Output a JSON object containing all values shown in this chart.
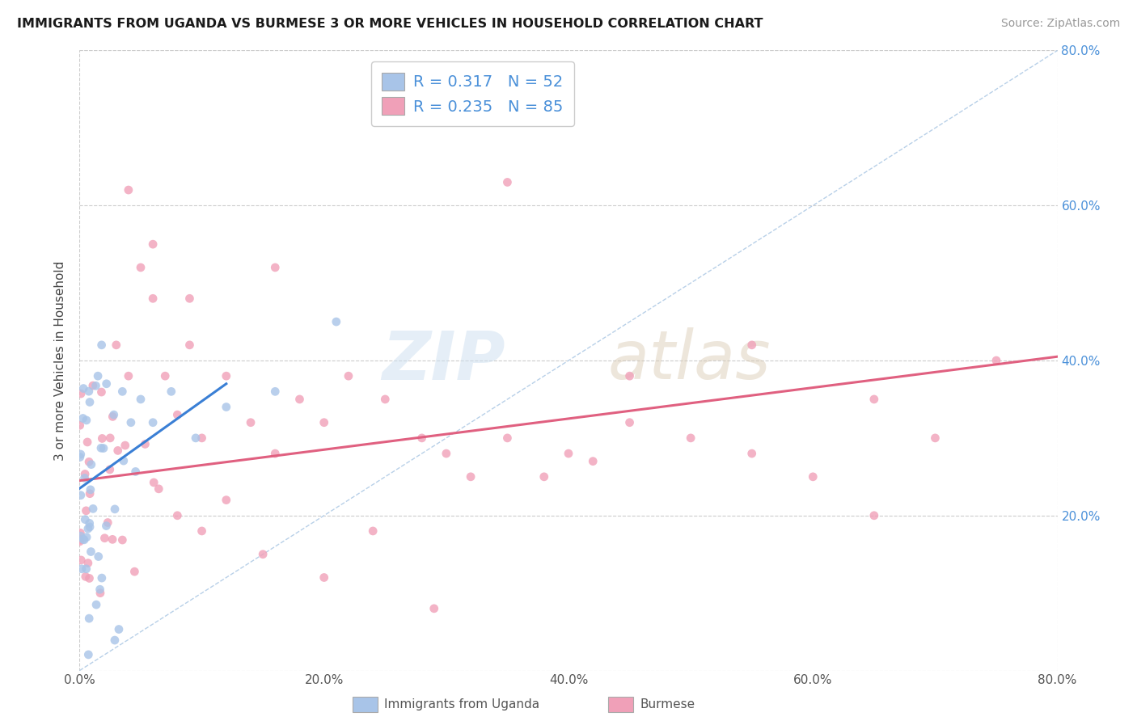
{
  "title": "IMMIGRANTS FROM UGANDA VS BURMESE 3 OR MORE VEHICLES IN HOUSEHOLD CORRELATION CHART",
  "source": "Source: ZipAtlas.com",
  "ylabel": "3 or more Vehicles in Household",
  "xlim": [
    0.0,
    0.8
  ],
  "ylim": [
    0.0,
    0.8
  ],
  "xtick_labels": [
    "0.0%",
    "20.0%",
    "40.0%",
    "60.0%",
    "80.0%"
  ],
  "xtick_vals": [
    0.0,
    0.2,
    0.4,
    0.6,
    0.8
  ],
  "ytick_vals": [
    0.2,
    0.4,
    0.6,
    0.8
  ],
  "right_ytick_labels": [
    "20.0%",
    "40.0%",
    "60.0%",
    "80.0%"
  ],
  "right_ytick_vals": [
    0.2,
    0.4,
    0.6,
    0.8
  ],
  "legend1_R": "0.317",
  "legend1_N": "52",
  "legend2_R": "0.235",
  "legend2_N": "85",
  "scatter1_color": "#a8c4e8",
  "scatter2_color": "#f0a0b8",
  "line1_color": "#3a7fd5",
  "line2_color": "#e06080",
  "diagonal_color": "#b8d0e8",
  "watermark_zip": "ZIP",
  "watermark_atlas": "atlas",
  "legend_bottom_label1": "Immigrants from Uganda",
  "legend_bottom_label2": "Burmese",
  "border_color": "#cccccc",
  "grid_color": "#cccccc",
  "right_label_color": "#4a90d9",
  "title_color": "#1a1a1a",
  "source_color": "#999999"
}
